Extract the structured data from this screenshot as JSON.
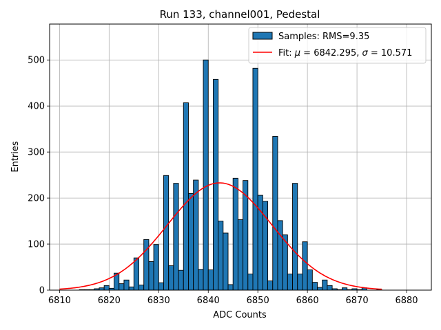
{
  "chart_data": {
    "type": "bar",
    "title": "Run 133, channel001, Pedestal",
    "xlabel": "ADC Counts",
    "ylabel": "Entries",
    "xlim": [
      6808,
      6885
    ],
    "ylim": [
      0,
      578
    ],
    "xticks": [
      6810,
      6820,
      6830,
      6840,
      6850,
      6860,
      6870,
      6880
    ],
    "yticks": [
      0,
      100,
      200,
      300,
      400,
      500
    ],
    "grid": true,
    "legend_position": "top-right",
    "bin_width": 1,
    "bin_start": 6810,
    "values": [
      0,
      0,
      0,
      0,
      1,
      1,
      1,
      3,
      5,
      10,
      4,
      37,
      14,
      22,
      7,
      70,
      11,
      110,
      62,
      99,
      16,
      249,
      53,
      232,
      43,
      407,
      210,
      239,
      45,
      500,
      44,
      458,
      150,
      124,
      12,
      243,
      153,
      238,
      35,
      482,
      206,
      193,
      20,
      334,
      151,
      120,
      35,
      232,
      35,
      105,
      44,
      17,
      6,
      22,
      10,
      3,
      1,
      5,
      1,
      3,
      1,
      5,
      0,
      0,
      1
    ],
    "series": [
      {
        "name": "Samples: RMS=9.35",
        "kind": "histogram",
        "color": "#1f77b4"
      },
      {
        "name": "Fit: μ = 6842.295, σ = 10.571",
        "kind": "gaussian",
        "color": "#ff0000",
        "mu": 6842.295,
        "sigma": 10.571,
        "amplitude": 233,
        "x_range": [
          6810,
          6875
        ]
      }
    ],
    "legend": [
      {
        "label_prefix": "Samples: RMS=9.35",
        "label_parts": []
      },
      {
        "label_prefix": "Fit: ",
        "label_parts": [
          "μ",
          " = 6842.295, ",
          "σ",
          " = 10.571"
        ]
      }
    ]
  }
}
